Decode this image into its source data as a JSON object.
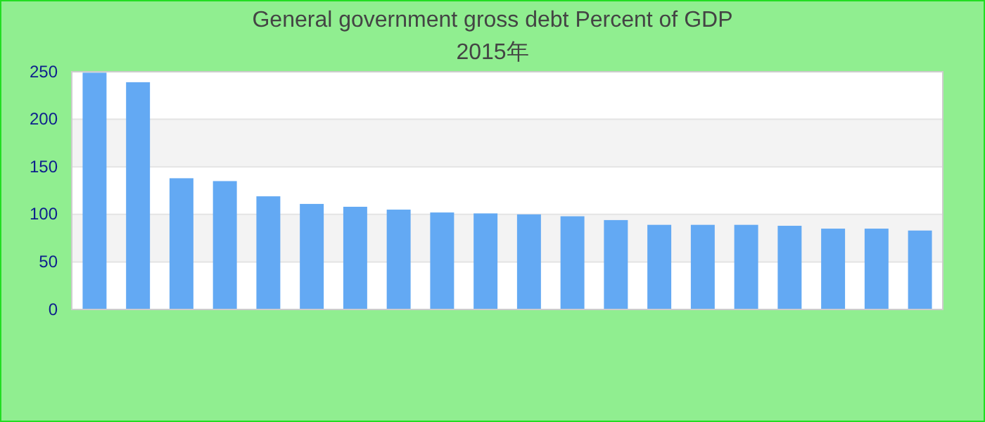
{
  "chart_data": {
    "type": "bar",
    "title": "General government gross debt  Percent of GDP",
    "subtitle": "2015年",
    "categories": [
      null,
      null,
      null,
      null,
      null,
      null,
      null,
      null,
      null,
      null,
      null,
      null,
      null,
      null,
      null,
      null,
      null,
      null,
      null,
      null
    ],
    "values": [
      249,
      239,
      138,
      135,
      119,
      111,
      108,
      105,
      102,
      101,
      100,
      98,
      94,
      89,
      89,
      89,
      88,
      85,
      85,
      83
    ],
    "color": "#63a9f3",
    "ylim": [
      0,
      250
    ],
    "yticks": [
      0,
      50,
      100,
      150,
      200,
      250
    ],
    "grid": "y"
  }
}
